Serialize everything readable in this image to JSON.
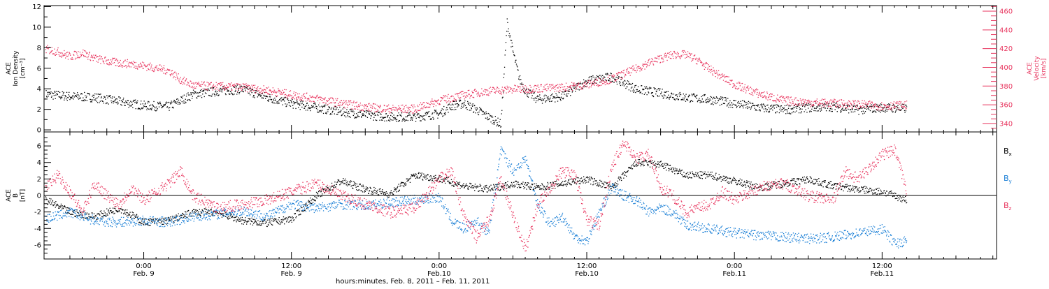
{
  "colors": {
    "black": "#000000",
    "pink": "#e8365f",
    "blue": "#1a7fd6"
  },
  "footer": {
    "caption": "hours:minutes, Feb.  8, 2011 – Feb. 11, 2011"
  },
  "time_axis": {
    "tick_labels": [
      {
        "t": 24,
        "time": "0:00",
        "date": "Feb. 9"
      },
      {
        "t": 36,
        "time": "12:00",
        "date": "Feb. 9"
      },
      {
        "t": 48,
        "time": "0:00",
        "date": "Feb.10"
      },
      {
        "t": 60,
        "time": "12:00",
        "date": "Feb.10"
      },
      {
        "t": 72,
        "time": "0:00",
        "date": "Feb.11"
      },
      {
        "t": 84,
        "time": "12:00",
        "date": "Feb.11"
      }
    ]
  },
  "chart_data": [
    {
      "type": "scatter",
      "panel": "top",
      "xlabel": "hours:minutes, Feb.  8, 2011 – Feb. 11, 2011",
      "xlim_hours_from_feb8_0000": [
        15.9,
        93.3
      ],
      "left_axis": {
        "label": [
          "ACE",
          "Ion Density",
          "[cm⁻³]"
        ],
        "ylim": [
          -0.2,
          12.1
        ],
        "ticks": [
          "0",
          "2",
          "4",
          "6",
          "8",
          "10",
          "12"
        ]
      },
      "right_axis": {
        "label": [
          "ACE",
          "Velocity",
          "[km/s]"
        ],
        "ylim": [
          331,
          466
        ],
        "color": "#e8365f",
        "ticks": [
          "340",
          "360",
          "380",
          "400",
          "420",
          "440",
          "460"
        ]
      },
      "series": [
        {
          "axis": "left",
          "color": "#000000",
          "x": [
            16,
            18,
            20,
            22,
            24,
            26,
            28,
            30,
            32,
            34,
            36,
            38,
            40,
            42,
            44,
            46,
            48,
            49,
            50,
            51,
            52,
            53,
            53.5,
            54,
            54.5,
            55,
            56,
            58,
            60,
            62,
            64,
            66,
            68,
            70,
            72,
            74,
            76,
            78,
            80,
            82,
            84,
            86
          ],
          "y": [
            3.5,
            3.3,
            3.2,
            2.8,
            2.4,
            2.3,
            3.5,
            3.8,
            4.0,
            3.2,
            2.6,
            2.2,
            1.8,
            1.5,
            1.3,
            1.3,
            1.6,
            2.4,
            2.6,
            2.0,
            1.3,
            0.6,
            10.5,
            7.5,
            5.0,
            3.8,
            3.0,
            3.3,
            4.8,
            5.2,
            4.0,
            3.6,
            3.2,
            3.0,
            2.6,
            2.2,
            2.0,
            2.2,
            2.3,
            2.0,
            2.2,
            2.1
          ]
        },
        {
          "axis": "right",
          "color": "#e8365f",
          "x": [
            16,
            17,
            18,
            19,
            20,
            21,
            22,
            23,
            24,
            26,
            27,
            28,
            30,
            32,
            34,
            36,
            38,
            40,
            42,
            44,
            46,
            48,
            50,
            52,
            54,
            56,
            58,
            60,
            62,
            64,
            65,
            66,
            67,
            68,
            69,
            70,
            72,
            74,
            76,
            78,
            80,
            82,
            84,
            86
          ],
          "y": [
            420,
            417,
            412,
            416,
            410,
            407,
            405,
            404,
            402,
            397,
            387,
            381,
            380,
            379,
            376,
            371,
            367,
            362,
            358,
            356,
            356,
            365,
            371,
            375,
            377,
            378,
            379,
            382,
            388,
            399,
            405,
            410,
            414,
            414,
            408,
            398,
            382,
            372,
            365,
            363,
            362,
            361,
            359,
            360
          ]
        }
      ]
    },
    {
      "type": "scatter",
      "panel": "bottom",
      "xlim_hours_from_feb8_0000": [
        15.9,
        93.3
      ],
      "left_axis": {
        "label": [
          "ACE",
          "B",
          "[nT]"
        ],
        "ylim": [
          -7.7,
          7.7
        ],
        "ticks": [
          "-6",
          "-4",
          "-2",
          "0",
          "2",
          "4",
          "6"
        ]
      },
      "zero_line": true,
      "legend_position": "right",
      "series": [
        {
          "name": "Bx",
          "color": "#000000",
          "x": [
            16,
            18,
            20,
            22,
            24,
            26,
            28,
            30,
            32,
            34,
            36,
            38,
            40,
            42,
            44,
            46,
            48,
            50,
            52,
            54,
            56,
            58,
            60,
            62,
            64,
            66,
            68,
            70,
            72,
            74,
            76,
            78,
            80,
            82,
            84,
            86
          ],
          "y": [
            -0.5,
            -2.0,
            -2.5,
            -1.5,
            -3.2,
            -3.0,
            -2.0,
            -2.0,
            -3.0,
            -3.3,
            -2.8,
            0.0,
            1.8,
            0.8,
            0.2,
            2.5,
            2.1,
            1.2,
            0.8,
            1.5,
            1.0,
            1.5,
            2.0,
            1.0,
            4.0,
            3.8,
            2.5,
            2.5,
            1.8,
            1.0,
            1.5,
            2.0,
            1.2,
            0.8,
            0.5,
            -0.5
          ]
        },
        {
          "name": "By",
          "color": "#1a7fd6",
          "x": [
            16,
            18,
            20,
            22,
            24,
            26,
            28,
            30,
            32,
            34,
            36,
            38,
            40,
            42,
            44,
            46,
            48,
            49,
            50,
            51,
            52,
            53,
            54,
            55,
            56,
            57,
            58,
            59,
            60,
            61,
            62,
            63,
            64,
            65,
            66,
            67,
            68,
            70,
            72,
            74,
            76,
            78,
            80,
            82,
            84,
            85,
            86
          ],
          "y": [
            -2.8,
            -2.0,
            -3.0,
            -3.2,
            -3.0,
            -3.2,
            -2.5,
            -2.2,
            -1.8,
            -2.5,
            -1.0,
            -1.5,
            -1.0,
            -1.2,
            -0.8,
            -0.5,
            -0.2,
            -3.0,
            -4.0,
            -3.0,
            -4.5,
            5.5,
            3.0,
            4.5,
            -1.0,
            -3.5,
            -2.5,
            -5.0,
            -5.5,
            -2.0,
            1.0,
            0.0,
            -0.5,
            -2.0,
            -1.5,
            -2.0,
            -3.5,
            -4.0,
            -4.5,
            -4.8,
            -5.0,
            -5.2,
            -5.0,
            -4.5,
            -4.0,
            -5.8,
            -5.5
          ]
        },
        {
          "name": "Bz",
          "color": "#e8365f",
          "x": [
            16,
            17,
            18,
            19,
            20,
            21,
            22,
            23,
            24,
            26,
            27,
            28,
            30,
            32,
            34,
            36,
            38,
            40,
            42,
            44,
            46,
            48,
            49,
            50,
            51,
            52,
            53,
            54,
            55,
            56,
            57,
            58,
            59,
            60,
            61,
            62,
            63,
            64,
            65,
            66,
            67,
            68,
            70,
            71,
            72,
            74,
            76,
            78,
            80,
            81,
            82,
            84,
            85,
            86
          ],
          "y": [
            1.0,
            2.5,
            0.5,
            -2.0,
            1.5,
            0.0,
            -1.0,
            1.0,
            -0.5,
            1.5,
            3.0,
            0.0,
            -1.5,
            -1.0,
            -0.5,
            0.5,
            1.5,
            0.0,
            -1.0,
            -2.0,
            -1.5,
            2.0,
            3.0,
            -2.5,
            -5.0,
            -3.0,
            2.0,
            -2.5,
            -6.5,
            -1.0,
            1.0,
            3.0,
            2.5,
            -3.0,
            -3.5,
            3.5,
            6.5,
            4.5,
            5.0,
            1.0,
            0.0,
            -2.0,
            -1.0,
            0.5,
            -0.5,
            1.0,
            1.5,
            0.0,
            -0.5,
            3.0,
            2.0,
            5.0,
            5.5,
            0.5
          ]
        }
      ]
    }
  ]
}
